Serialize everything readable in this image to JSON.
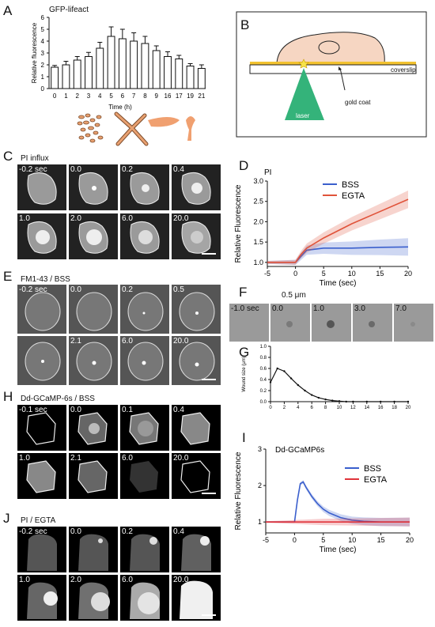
{
  "panels": {
    "A": {
      "label": "A",
      "title": "GFP-lifeact",
      "chart_data": {
        "type": "bar",
        "title": "GFP-lifeact",
        "xlabel": "Time (h)",
        "ylabel": "Relative fluorescence",
        "categories": [
          "0",
          "1",
          "2",
          "3",
          "4",
          "5",
          "6",
          "7",
          "8",
          "9",
          "16",
          "17",
          "19",
          "21"
        ],
        "values": [
          1.8,
          2.0,
          2.4,
          2.7,
          3.4,
          4.4,
          4.2,
          4.0,
          3.8,
          3.2,
          2.7,
          2.5,
          1.9,
          1.7
        ],
        "errors": [
          0.15,
          0.3,
          0.3,
          0.35,
          0.5,
          0.8,
          0.8,
          0.7,
          0.6,
          0.4,
          0.4,
          0.3,
          0.2,
          0.3
        ],
        "ylim": [
          0,
          6
        ],
        "yticks": [
          "0",
          "1",
          "2",
          "3",
          "4",
          "5",
          "6"
        ]
      }
    },
    "B": {
      "label": "B",
      "coverslip": "coverslip",
      "gold": "gold coat",
      "laser": "laser"
    },
    "C": {
      "label": "C",
      "title": "PI influx",
      "times": [
        "-0.2 sec",
        "0.0",
        "0.2",
        "0.4",
        "1.0",
        "2.0",
        "6.0",
        "20.0"
      ]
    },
    "D": {
      "label": "D",
      "chart_data": {
        "type": "line",
        "title": "PI",
        "xlabel": "Time (sec)",
        "ylabel": "Relative Fluorescence",
        "xlim": [
          -5,
          20
        ],
        "ylim": [
          0.9,
          3.0
        ],
        "xticks": [
          "-5",
          "0",
          "5",
          "10",
          "15",
          "20"
        ],
        "yticks": [
          "1.0",
          "1.5",
          "2.0",
          "2.5",
          "3.0"
        ],
        "series": [
          {
            "name": "BSS",
            "color": "#3a5fcd",
            "x": [
              -5,
              0,
              1,
              2,
              5,
              10,
              15,
              20
            ],
            "y": [
              1.0,
              1.0,
              1.15,
              1.3,
              1.35,
              1.35,
              1.37,
              1.38
            ]
          },
          {
            "name": "EGTA",
            "color": "#e0533a",
            "x": [
              -5,
              0,
              1,
              2,
              5,
              10,
              15,
              20
            ],
            "y": [
              1.0,
              1.0,
              1.2,
              1.35,
              1.6,
              1.95,
              2.25,
              2.55
            ]
          }
        ]
      }
    },
    "E": {
      "label": "E",
      "title": "FM1-43 / BSS",
      "times": [
        "-0.2 sec",
        "0.0",
        "0.2",
        "0.5",
        "",
        "2.1",
        "6.0",
        "20.0"
      ]
    },
    "F": {
      "label": "F",
      "scale": "0.5 μm",
      "times": [
        "-1.0 sec",
        "0.0",
        "1.0",
        "3.0",
        "7.0"
      ]
    },
    "G": {
      "label": "G",
      "chart_data": {
        "type": "line",
        "xlabel": "Time(sec)",
        "ylabel": "Wound size (μm)",
        "xlim": [
          0,
          20
        ],
        "ylim": [
          0,
          1.0
        ],
        "xticks": [
          "0",
          "2",
          "4",
          "6",
          "8",
          "10",
          "12",
          "14",
          "16",
          "18",
          "20"
        ],
        "yticks": [
          "0.0",
          "0.2",
          "0.4",
          "0.6",
          "0.8",
          "1.0"
        ],
        "series": [
          {
            "x": [
              0,
              1,
              2,
              3,
              4,
              5,
              6,
              7,
              8,
              9,
              10,
              11,
              12,
              14,
              16,
              18,
              20
            ],
            "y": [
              0.35,
              0.6,
              0.55,
              0.42,
              0.3,
              0.2,
              0.12,
              0.07,
              0.04,
              0.02,
              0.01,
              0,
              0,
              0,
              0,
              0,
              0
            ]
          }
        ]
      }
    },
    "H": {
      "label": "H",
      "title": "Dd-GCaMP-6s / BSS",
      "times": [
        "-0.1 sec",
        "0.0",
        "0.1",
        "0.4",
        "1.0",
        "2.1",
        "6.0",
        "20.0"
      ]
    },
    "I": {
      "label": "I",
      "chart_data": {
        "type": "line",
        "title": "Dd-GCaMP6s",
        "xlabel": "Time (sec)",
        "ylabel": "Relative Fluorescence",
        "xlim": [
          -5,
          20
        ],
        "ylim": [
          0.7,
          3
        ],
        "xticks": [
          "-5",
          "0",
          "5",
          "10",
          "15",
          "20"
        ],
        "yticks": [
          "1",
          "2",
          "3"
        ],
        "series": [
          {
            "name": "BSS",
            "color": "#3a5fcd",
            "x": [
              -5,
              0,
              0.5,
              1,
              1.5,
              2,
              3,
              4,
              5,
              6,
              8,
              10,
              12,
              15,
              20
            ],
            "y": [
              1.0,
              1.0,
              1.6,
              2.05,
              2.1,
              1.95,
              1.7,
              1.5,
              1.35,
              1.25,
              1.12,
              1.05,
              1.02,
              1.0,
              1.0
            ]
          },
          {
            "name": "EGTA",
            "color": "#e0333a",
            "x": [
              -5,
              0,
              5,
              20
            ],
            "y": [
              1.0,
              1.0,
              1.0,
              1.0
            ]
          }
        ]
      }
    },
    "J": {
      "label": "J",
      "title": "PI / EGTA",
      "times": [
        "-0.2 sec",
        "0.0",
        "0.2",
        "0.4",
        "1.0",
        "2.0",
        "6.0",
        "20.0"
      ]
    }
  }
}
